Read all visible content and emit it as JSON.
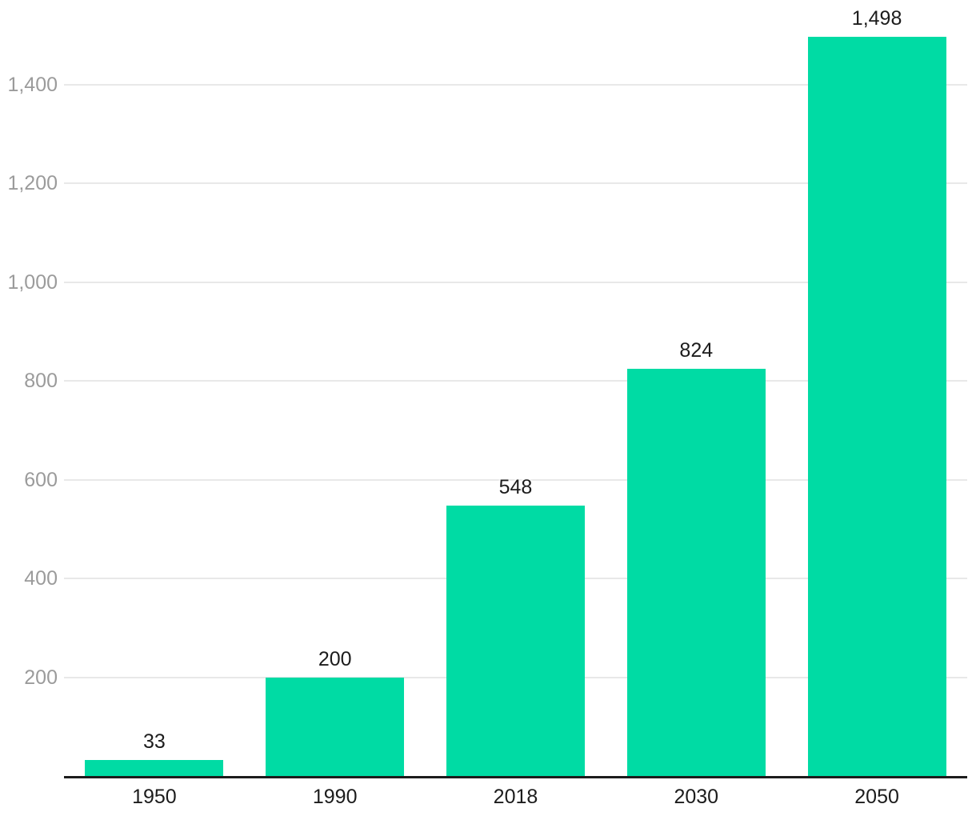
{
  "chart_data": {
    "type": "bar",
    "categories": [
      "1950",
      "1990",
      "2018",
      "2030",
      "2050"
    ],
    "values": [
      33,
      200,
      548,
      824,
      1498
    ],
    "value_labels": [
      "33",
      "200",
      "548",
      "824",
      "1,498"
    ],
    "title": "",
    "xlabel": "",
    "ylabel": "",
    "ylim": [
      0,
      1500
    ],
    "yticks": [
      200,
      400,
      600,
      800,
      1000,
      1200,
      1400
    ],
    "ytick_labels": [
      "200",
      "400",
      "600",
      "800",
      "1,000",
      "1,200",
      "1,400"
    ],
    "grid": true,
    "legend": false,
    "colors": {
      "bar": "#00dba4",
      "value_label": "#1c1c1c",
      "xtick_label": "#1c1c1c",
      "ytick_label": "#9b9b9b",
      "gridline": "#e8e8e8",
      "axis_line": "#1c1c1c",
      "background": "#ffffff"
    }
  }
}
